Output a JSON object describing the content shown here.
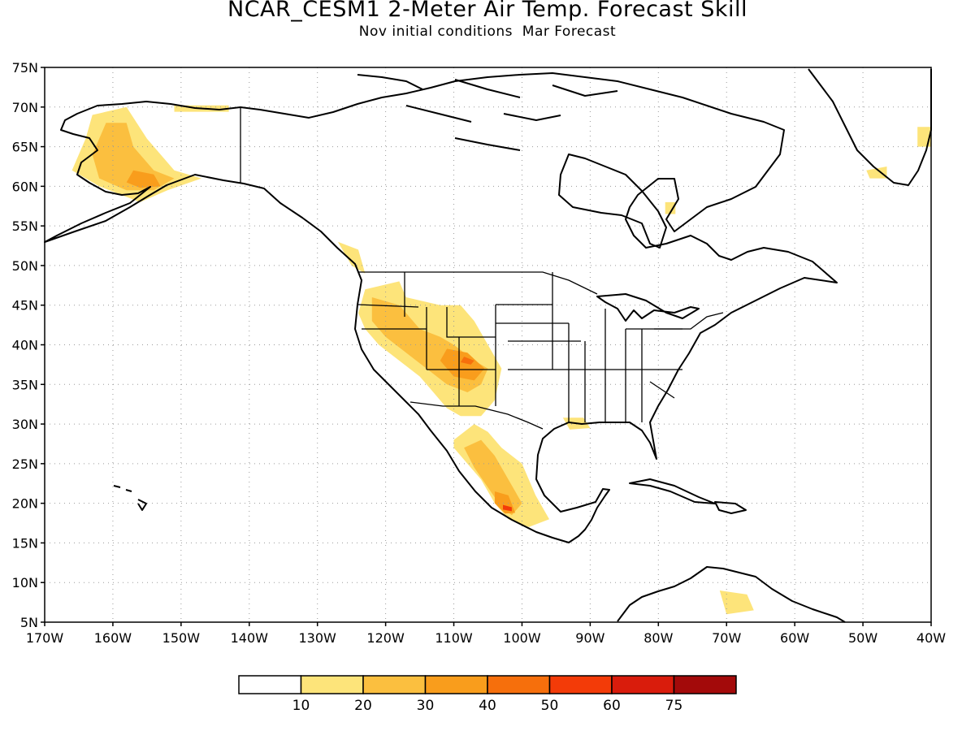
{
  "title": "NCAR_CESM1 2-Meter Air Temp. Forecast Skill",
  "subtitle": "Nov initial conditions  Mar Forecast",
  "map": {
    "lon_range": [
      -170,
      -40
    ],
    "lat_range": [
      5,
      75
    ],
    "lat_ticks": [
      {
        "value": 75,
        "label": "75N"
      },
      {
        "value": 70,
        "label": "70N"
      },
      {
        "value": 65,
        "label": "65N"
      },
      {
        "value": 60,
        "label": "60N"
      },
      {
        "value": 55,
        "label": "55N"
      },
      {
        "value": 50,
        "label": "50N"
      },
      {
        "value": 45,
        "label": "45N"
      },
      {
        "value": 40,
        "label": "40N"
      },
      {
        "value": 35,
        "label": "35N"
      },
      {
        "value": 30,
        "label": "30N"
      },
      {
        "value": 25,
        "label": "25N"
      },
      {
        "value": 20,
        "label": "20N"
      },
      {
        "value": 15,
        "label": "15N"
      },
      {
        "value": 10,
        "label": "10N"
      },
      {
        "value": 5,
        "label": "5N"
      }
    ],
    "lon_ticks": [
      {
        "value": -170,
        "label": "170W"
      },
      {
        "value": -160,
        "label": "160W"
      },
      {
        "value": -150,
        "label": "150W"
      },
      {
        "value": -140,
        "label": "140W"
      },
      {
        "value": -130,
        "label": "130W"
      },
      {
        "value": -120,
        "label": "120W"
      },
      {
        "value": -110,
        "label": "110W"
      },
      {
        "value": -100,
        "label": "100W"
      },
      {
        "value": -90,
        "label": "90W"
      },
      {
        "value": -80,
        "label": "80W"
      },
      {
        "value": -70,
        "label": "70W"
      },
      {
        "value": -60,
        "label": "60W"
      },
      {
        "value": -50,
        "label": "50W"
      },
      {
        "value": -40,
        "label": "40W"
      }
    ],
    "grid": "dotted",
    "land_outline_color": "#000000"
  },
  "colorbar": {
    "boundaries": [
      "10",
      "20",
      "30",
      "40",
      "50",
      "60",
      "75"
    ],
    "colors": [
      "#ffffff",
      "#fde47a",
      "#fbbf3f",
      "#f99d1c",
      "#f66f0c",
      "#f33b08",
      "#d91c0c",
      "#a30a0a"
    ]
  },
  "skill_regions": [
    {
      "name": "alaska",
      "level": 1,
      "points": [
        [
          -163,
          69
        ],
        [
          -158,
          70
        ],
        [
          -155,
          66
        ],
        [
          -151,
          62
        ],
        [
          -147,
          61
        ],
        [
          -152,
          59.5
        ],
        [
          -156,
          58
        ],
        [
          -162,
          60
        ],
        [
          -166,
          62
        ],
        [
          -164,
          66
        ]
      ]
    },
    {
      "name": "alaska",
      "level": 2,
      "points": [
        [
          -161,
          68
        ],
        [
          -158,
          68
        ],
        [
          -157,
          65
        ],
        [
          -154,
          62
        ],
        [
          -151,
          61
        ],
        [
          -154,
          59.5
        ],
        [
          -158,
          59.5
        ],
        [
          -162,
          61
        ],
        [
          -163,
          64
        ]
      ]
    },
    {
      "name": "alaska",
      "level": 3,
      "points": [
        [
          -157,
          62
        ],
        [
          -154,
          61.5
        ],
        [
          -153,
          60
        ],
        [
          -156,
          59.8
        ],
        [
          -158,
          60.5
        ]
      ]
    },
    {
      "name": "arctic-coast",
      "level": 1,
      "points": [
        [
          -151,
          70.2
        ],
        [
          -143,
          70.2
        ],
        [
          -143,
          69.4
        ],
        [
          -151,
          69.4
        ]
      ]
    },
    {
      "name": "bc-coast",
      "level": 1,
      "points": [
        [
          -127,
          53
        ],
        [
          -124,
          52
        ],
        [
          -123,
          49
        ],
        [
          -125,
          50
        ]
      ]
    },
    {
      "name": "western-us",
      "level": 1,
      "points": [
        [
          -123,
          47
        ],
        [
          -118,
          48
        ],
        [
          -117,
          46
        ],
        [
          -112,
          45
        ],
        [
          -109,
          45
        ],
        [
          -107,
          43
        ],
        [
          -105,
          40
        ],
        [
          -103,
          37
        ],
        [
          -104,
          33
        ],
        [
          -106,
          31
        ],
        [
          -109,
          31
        ],
        [
          -111,
          32
        ],
        [
          -113,
          34
        ],
        [
          -115,
          36
        ],
        [
          -118,
          38
        ],
        [
          -121,
          40
        ],
        [
          -123,
          42
        ],
        [
          -124,
          44
        ]
      ]
    },
    {
      "name": "western-us",
      "level": 2,
      "points": [
        [
          -122,
          46
        ],
        [
          -118,
          45
        ],
        [
          -115,
          42
        ],
        [
          -112,
          41
        ],
        [
          -110,
          40
        ],
        [
          -107,
          38
        ],
        [
          -105,
          37
        ],
        [
          -106,
          35
        ],
        [
          -108,
          34
        ],
        [
          -111,
          35
        ],
        [
          -114,
          37
        ],
        [
          -117,
          39
        ],
        [
          -120,
          41
        ],
        [
          -122,
          43
        ]
      ]
    },
    {
      "name": "southwest",
      "level": 3,
      "points": [
        [
          -111,
          39.5
        ],
        [
          -108,
          39
        ],
        [
          -105.5,
          37
        ],
        [
          -107,
          35.5
        ],
        [
          -110,
          36
        ],
        [
          -112,
          38
        ]
      ]
    },
    {
      "name": "four-corners",
      "level": 4,
      "points": [
        [
          -108.5,
          38.5
        ],
        [
          -107,
          38
        ],
        [
          -107.5,
          37.5
        ],
        [
          -109,
          37.8
        ]
      ]
    },
    {
      "name": "mexico",
      "level": 1,
      "points": [
        [
          -110,
          28
        ],
        [
          -107,
          30
        ],
        [
          -105,
          29
        ],
        [
          -103,
          27
        ],
        [
          -100,
          25
        ],
        [
          -98,
          21
        ],
        [
          -96,
          18
        ],
        [
          -99,
          17
        ],
        [
          -102,
          18
        ],
        [
          -104,
          20
        ],
        [
          -106,
          23
        ],
        [
          -108,
          25
        ],
        [
          -110,
          27
        ]
      ]
    },
    {
      "name": "mexico",
      "level": 2,
      "points": [
        [
          -108.5,
          27
        ],
        [
          -106,
          28
        ],
        [
          -104,
          26
        ],
        [
          -102,
          23
        ],
        [
          -100,
          20
        ],
        [
          -101.5,
          18.5
        ],
        [
          -103,
          19.5
        ],
        [
          -105,
          22
        ],
        [
          -107,
          24.5
        ]
      ]
    },
    {
      "name": "mexico",
      "level": 3,
      "points": [
        [
          -104,
          21.5
        ],
        [
          -102,
          21
        ],
        [
          -101,
          18.8
        ],
        [
          -102.5,
          18.7
        ],
        [
          -104,
          20
        ]
      ]
    },
    {
      "name": "mexico",
      "level": 5,
      "points": [
        [
          -102.8,
          19.8
        ],
        [
          -101.5,
          19.5
        ],
        [
          -101.5,
          19
        ],
        [
          -102.8,
          19.2
        ]
      ]
    },
    {
      "name": "gulf-coast",
      "level": 1,
      "points": [
        [
          -94,
          30.8
        ],
        [
          -91,
          30.8
        ],
        [
          -90,
          29.5
        ],
        [
          -93,
          29.3
        ]
      ]
    },
    {
      "name": "caribbean-south",
      "level": 1,
      "points": [
        [
          -71,
          9
        ],
        [
          -67,
          8.5
        ],
        [
          -66,
          6.5
        ],
        [
          -70,
          6
        ]
      ]
    },
    {
      "name": "greenland",
      "level": 1,
      "points": [
        [
          -42,
          67.5
        ],
        [
          -40,
          67.5
        ],
        [
          -40,
          65
        ],
        [
          -42,
          65
        ]
      ]
    },
    {
      "name": "greenland-south",
      "level": 1,
      "points": [
        [
          -49.5,
          62
        ],
        [
          -46.5,
          62.5
        ],
        [
          -46.5,
          61
        ],
        [
          -49,
          61
        ]
      ]
    },
    {
      "name": "hudson",
      "level": 1,
      "points": [
        [
          -79,
          58
        ],
        [
          -77.5,
          58
        ],
        [
          -77.5,
          56.5
        ],
        [
          -79,
          56.5
        ]
      ]
    }
  ]
}
